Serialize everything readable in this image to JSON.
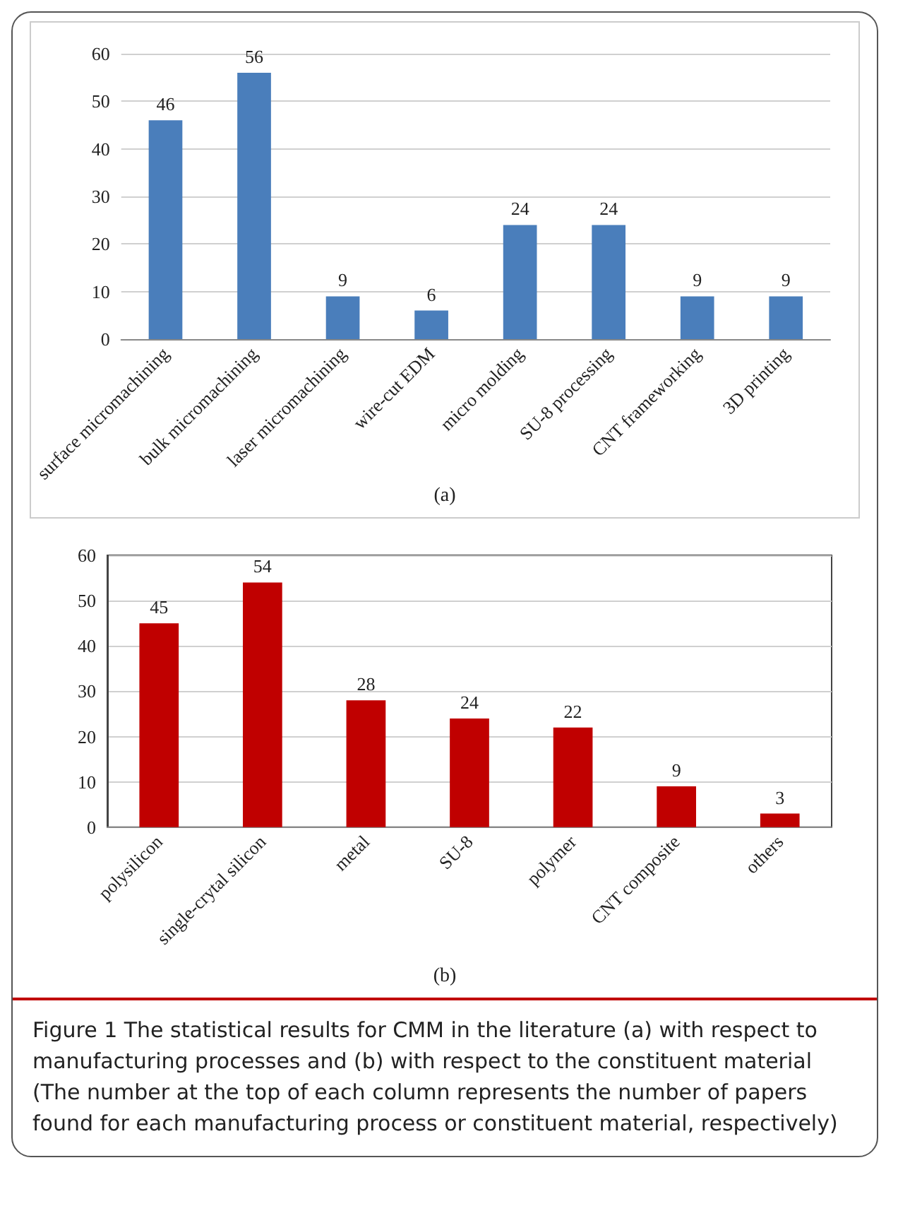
{
  "chart_data": [
    {
      "type": "bar",
      "xlabel": "(a)",
      "categories": [
        "surface micromachining",
        "bulk micromachining",
        "laser micromachining",
        "wire-cut EDM",
        "micro molding",
        "SU-8 processing",
        "CNT frameworking",
        "3D printing"
      ],
      "series": [
        {
          "color": "#4a7ebb",
          "values": [
            46,
            56,
            9,
            6,
            24,
            24,
            9,
            9
          ]
        }
      ],
      "ylim": [
        0,
        60
      ],
      "yticks": [
        0,
        10,
        20,
        30,
        40,
        50,
        60
      ],
      "grid": "y",
      "data_labels": true
    },
    {
      "type": "bar",
      "xlabel": "(b)",
      "categories": [
        "polysilicon",
        "single-crytal silicon",
        "metal",
        "SU-8",
        "polymer",
        "CNT composite",
        "others"
      ],
      "series": [
        {
          "color": "#c00000",
          "values": [
            45,
            54,
            28,
            24,
            22,
            9,
            3
          ]
        }
      ],
      "ylim": [
        0,
        60
      ],
      "yticks": [
        0,
        10,
        20,
        30,
        40,
        50,
        60
      ],
      "grid": "y",
      "data_labels": true,
      "annotations": [
        "Figure 1  The statistical results for CMM in the literature (a) with respect to manufacturing processes and (b) with respect to the constituent material (The number at the top of each column represents the number of papers found for each manufacturing process or constituent material, respectively)"
      ]
    }
  ]
}
